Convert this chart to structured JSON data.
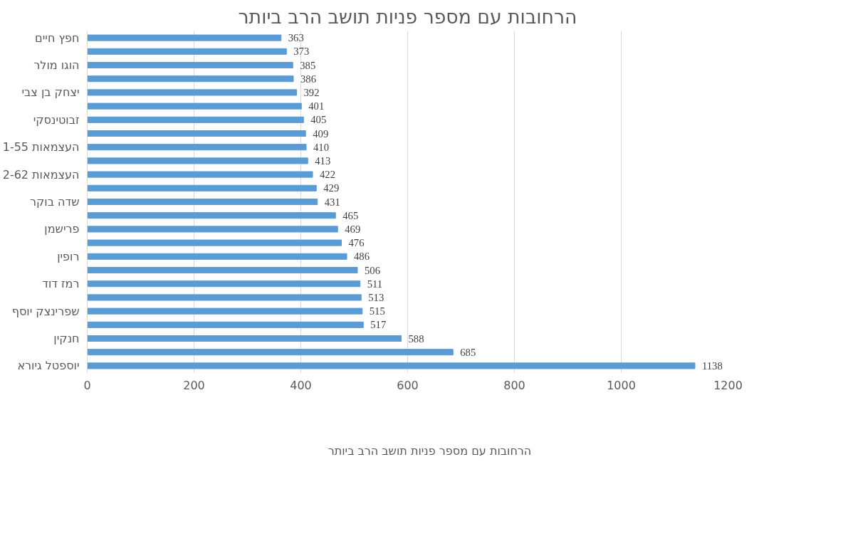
{
  "chart_data": {
    "type": "bar",
    "orientation": "horizontal",
    "title": "הרחובות עם מספר פניות תושב הרב ביותר",
    "categories": [
      "חפץ חיים",
      null,
      "הוגו מולר",
      null,
      "יצחק בן צבי",
      null,
      "זבוטינסקי",
      null,
      "העצמאות 1-55",
      null,
      "העצמאות 2-62",
      null,
      "שדה בוקר",
      null,
      "פרישמן",
      null,
      "רופין",
      null,
      "רמז דוד",
      null,
      "שפרינצק יוסף",
      null,
      "חנקין",
      null,
      "יוספטל גיורא"
    ],
    "series": [
      {
        "name": "הרחובות עם מספר פניות תושב הרב ביותר",
        "color": "#5b9bd5",
        "values": [
          363,
          373,
          385,
          386,
          392,
          401,
          405,
          409,
          410,
          413,
          422,
          429,
          431,
          465,
          469,
          476,
          486,
          506,
          511,
          513,
          515,
          517,
          588,
          685,
          1138
        ]
      }
    ],
    "xlim": [
      0,
      1200
    ],
    "xticks": [
      0,
      200,
      400,
      600,
      800,
      1000,
      1200
    ],
    "grid": "x",
    "legend": "bottom",
    "data_labels": true
  }
}
